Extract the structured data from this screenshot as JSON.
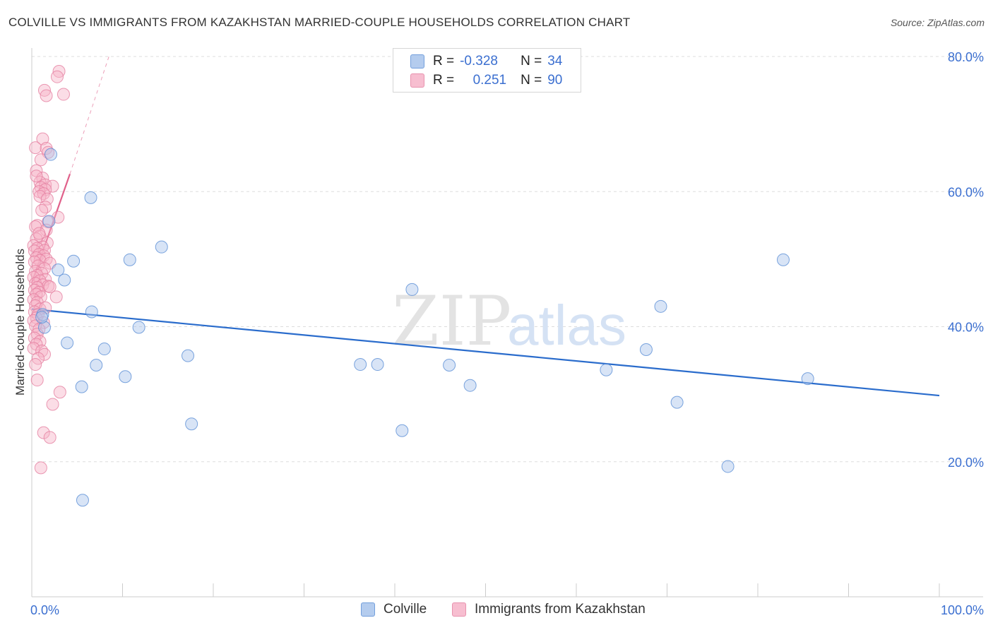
{
  "header": {
    "title": "COLVILLE VS IMMIGRANTS FROM KAZAKHSTAN MARRIED-COUPLE HOUSEHOLDS CORRELATION CHART",
    "source": "Source: ZipAtlas.com"
  },
  "watermark": {
    "zip": "ZIP",
    "atlas": "atlas"
  },
  "legend": {
    "r_label": "R =",
    "n_label": "N =",
    "colville": {
      "r": "-0.328",
      "n": "34"
    },
    "kazakhstan": {
      "r": "0.251",
      "n": "90"
    }
  },
  "colors": {
    "blue_fill": "#a8c4ec",
    "blue_stroke": "#5b8fd6",
    "blue_line": "#2a6ccc",
    "pink_fill": "#f6b3c8",
    "pink_stroke": "#e57fa0",
    "pink_line": "#e0608a",
    "axis_text": "#3b6fd0"
  },
  "chart_data": {
    "type": "scatter",
    "title": "COLVILLE VS IMMIGRANTS FROM KAZAKHSTAN MARRIED-COUPLE HOUSEHOLDS CORRELATION CHART",
    "xlabel": "",
    "ylabel": "Married-couple Households",
    "xlim": [
      0,
      100
    ],
    "ylim": [
      0,
      80
    ],
    "x_tick_labels": [
      "0.0%",
      "100.0%"
    ],
    "y_tick_labels": [
      "20.0%",
      "40.0%",
      "60.0%",
      "80.0%"
    ],
    "y_ticks": [
      20,
      40,
      60,
      80
    ],
    "grid": true,
    "legend_position": "top-center",
    "series": [
      {
        "name": "Colville",
        "color": "blue",
        "points": [
          [
            2.1,
            65.5
          ],
          [
            6.5,
            59.1
          ],
          [
            1.9,
            55.6
          ],
          [
            14.3,
            51.8
          ],
          [
            4.6,
            49.7
          ],
          [
            10.8,
            49.9
          ],
          [
            2.9,
            48.4
          ],
          [
            3.6,
            46.9
          ],
          [
            41.9,
            45.5
          ],
          [
            1.2,
            41.8
          ],
          [
            6.6,
            42.2
          ],
          [
            69.3,
            43.0
          ],
          [
            1.4,
            39.9
          ],
          [
            11.8,
            39.9
          ],
          [
            1.1,
            41.4
          ],
          [
            3.9,
            37.6
          ],
          [
            8.0,
            36.7
          ],
          [
            67.7,
            36.6
          ],
          [
            17.2,
            35.7
          ],
          [
            7.1,
            34.3
          ],
          [
            36.2,
            34.4
          ],
          [
            38.1,
            34.4
          ],
          [
            46.0,
            34.3
          ],
          [
            63.3,
            33.6
          ],
          [
            85.5,
            32.3
          ],
          [
            10.3,
            32.6
          ],
          [
            5.5,
            31.1
          ],
          [
            48.3,
            31.3
          ],
          [
            71.1,
            28.8
          ],
          [
            17.6,
            25.6
          ],
          [
            40.8,
            24.6
          ],
          [
            76.7,
            19.3
          ],
          [
            5.6,
            14.3
          ],
          [
            82.8,
            49.9
          ]
        ]
      },
      {
        "name": "Immigrants from Kazakhstan",
        "color": "pink",
        "points": [
          [
            3.0,
            77.8
          ],
          [
            2.8,
            77.0
          ],
          [
            1.4,
            75.0
          ],
          [
            3.5,
            74.4
          ],
          [
            1.6,
            74.2
          ],
          [
            1.2,
            67.8
          ],
          [
            0.4,
            66.5
          ],
          [
            1.6,
            66.4
          ],
          [
            1.8,
            65.8
          ],
          [
            1.0,
            64.7
          ],
          [
            0.5,
            63.1
          ],
          [
            1.2,
            62.0
          ],
          [
            0.9,
            61.4
          ],
          [
            1.5,
            61.0
          ],
          [
            2.3,
            60.8
          ],
          [
            1.0,
            60.6
          ],
          [
            1.5,
            60.3
          ],
          [
            0.8,
            60.0
          ],
          [
            1.3,
            59.7
          ],
          [
            0.9,
            59.3
          ],
          [
            1.7,
            58.9
          ],
          [
            1.5,
            57.7
          ],
          [
            2.9,
            56.2
          ],
          [
            1.8,
            55.5
          ],
          [
            0.6,
            55.0
          ],
          [
            0.4,
            54.8
          ],
          [
            1.6,
            54.3
          ],
          [
            0.9,
            53.4
          ],
          [
            0.5,
            53.0
          ],
          [
            1.7,
            52.4
          ],
          [
            0.2,
            52.0
          ],
          [
            1.2,
            51.8
          ],
          [
            0.6,
            51.6
          ],
          [
            1.4,
            51.3
          ],
          [
            0.3,
            51.2
          ],
          [
            0.8,
            50.7
          ],
          [
            1.3,
            50.5
          ],
          [
            0.5,
            50.2
          ],
          [
            1.6,
            50.0
          ],
          [
            0.9,
            49.8
          ],
          [
            0.3,
            49.6
          ],
          [
            2.0,
            49.4
          ],
          [
            0.7,
            49.0
          ],
          [
            1.4,
            48.6
          ],
          [
            0.4,
            48.2
          ],
          [
            1.1,
            47.9
          ],
          [
            0.6,
            47.6
          ],
          [
            0.2,
            47.3
          ],
          [
            1.5,
            47.0
          ],
          [
            0.9,
            46.8
          ],
          [
            0.4,
            46.4
          ],
          [
            1.2,
            46.2
          ],
          [
            1.8,
            46.0
          ],
          [
            0.6,
            45.8
          ],
          [
            0.3,
            45.4
          ],
          [
            2.0,
            45.9
          ],
          [
            0.8,
            45.1
          ],
          [
            0.5,
            44.8
          ],
          [
            1.0,
            44.4
          ],
          [
            2.7,
            44.4
          ],
          [
            0.2,
            44.0
          ],
          [
            0.6,
            43.6
          ],
          [
            0.4,
            43.1
          ],
          [
            0.9,
            42.6
          ],
          [
            0.3,
            42.2
          ],
          [
            0.7,
            41.8
          ],
          [
            0.5,
            41.3
          ],
          [
            0.2,
            40.9
          ],
          [
            1.3,
            40.6
          ],
          [
            0.4,
            40.1
          ],
          [
            0.8,
            39.6
          ],
          [
            0.6,
            38.9
          ],
          [
            0.3,
            38.3
          ],
          [
            0.9,
            37.8
          ],
          [
            0.5,
            37.4
          ],
          [
            0.2,
            36.8
          ],
          [
            1.1,
            36.4
          ],
          [
            1.4,
            35.9
          ],
          [
            0.7,
            35.3
          ],
          [
            0.4,
            34.4
          ],
          [
            0.6,
            32.1
          ],
          [
            3.1,
            30.3
          ],
          [
            2.3,
            28.5
          ],
          [
            1.3,
            24.3
          ],
          [
            2.0,
            23.6
          ],
          [
            1.0,
            19.1
          ],
          [
            0.5,
            62.3
          ],
          [
            1.1,
            57.2
          ],
          [
            0.8,
            53.8
          ],
          [
            1.5,
            42.8
          ]
        ]
      }
    ],
    "trend_lines": [
      {
        "series": "Colville",
        "x": [
          0,
          100
        ],
        "y": [
          42.6,
          29.8
        ],
        "style": "solid"
      },
      {
        "series": "Immigrants from Kazakhstan",
        "x": [
          0,
          4.2
        ],
        "y": [
          46.5,
          62.6
        ],
        "style": "solid"
      },
      {
        "series": "Immigrants from Kazakhstan",
        "x": [
          4.2,
          8.5
        ],
        "y": [
          62.6,
          80.0
        ],
        "style": "dashed"
      }
    ]
  }
}
